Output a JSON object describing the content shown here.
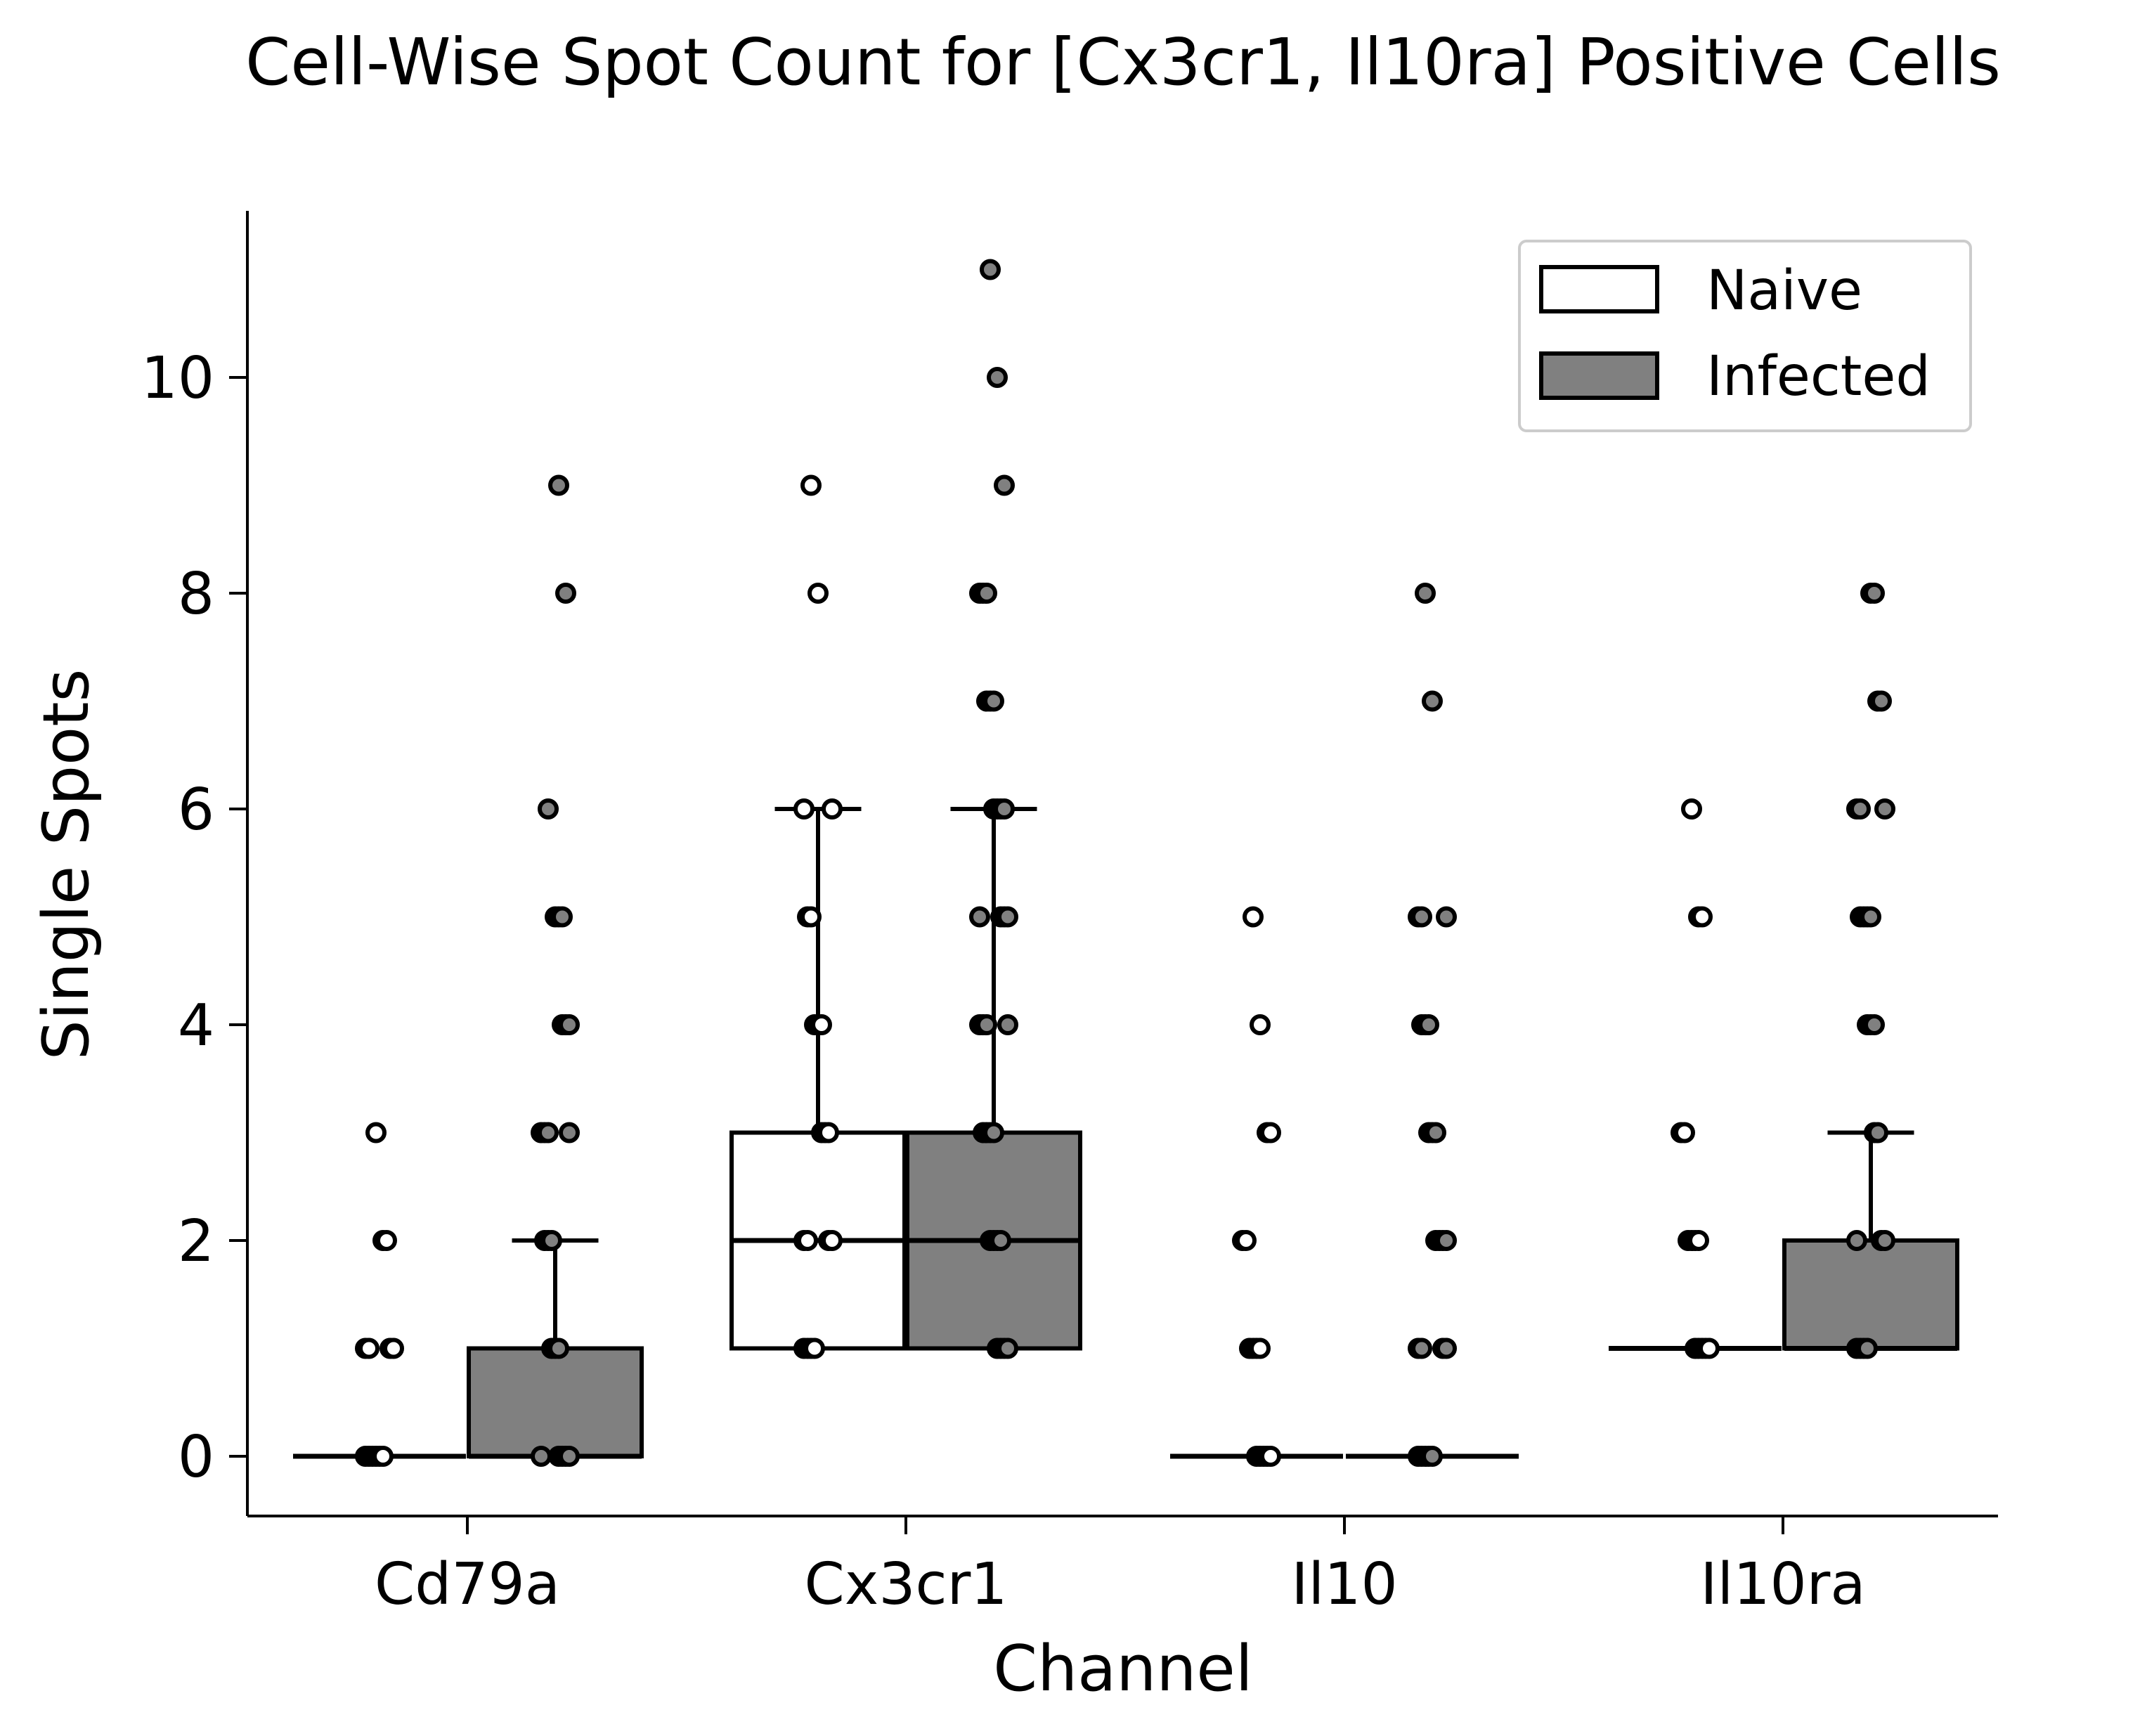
{
  "chart_data": {
    "type": "box",
    "title": "Cell-Wise Spot Count for [Cx3cr1, Il10ra] Positive Cells",
    "xlabel": "Channel",
    "ylabel": "Single Spots",
    "categories": [
      "Cd79a",
      "Cx3cr1",
      "Il10",
      "Il10ra"
    ],
    "ylim": [
      -0.55,
      11.55
    ],
    "yticks": [
      0,
      2,
      4,
      6,
      8,
      10
    ],
    "legend": {
      "placement": "top-right",
      "entries": [
        {
          "label": "Naive",
          "color": "#ffffff"
        },
        {
          "label": "Infected",
          "color": "#808080"
        }
      ]
    },
    "series": [
      {
        "name": "Naive",
        "color": "#ffffff",
        "boxes": [
          {
            "category": "Cd79a",
            "whisker_low": 0,
            "q1": 0,
            "median": 0,
            "q3": 0,
            "whisker_high": 0
          },
          {
            "category": "Cx3cr1",
            "whisker_low": 1,
            "q1": 1,
            "median": 2,
            "q3": 3,
            "whisker_high": 6
          },
          {
            "category": "Il10",
            "whisker_low": 0,
            "q1": 0,
            "median": 0,
            "q3": 0,
            "whisker_high": 0
          },
          {
            "category": "Il10ra",
            "whisker_low": 1,
            "q1": 1,
            "median": 1,
            "q3": 1,
            "whisker_high": 1
          }
        ],
        "points": [
          {
            "category": "Cd79a",
            "values": [
              0,
              0,
              0,
              0,
              0,
              0,
              1,
              1,
              1,
              1,
              2,
              2,
              3
            ]
          },
          {
            "category": "Cx3cr1",
            "values": [
              1,
              1,
              1,
              1,
              2,
              2,
              2,
              2,
              3,
              3,
              3,
              4,
              4,
              4,
              5,
              5,
              6,
              6,
              8,
              9
            ]
          },
          {
            "category": "Il10",
            "values": [
              0,
              0,
              0,
              0,
              0,
              1,
              1,
              1,
              1,
              2,
              2,
              3,
              3,
              4,
              5
            ]
          },
          {
            "category": "Il10ra",
            "values": [
              1,
              1,
              1,
              1,
              1,
              2,
              2,
              2,
              2,
              3,
              3,
              5,
              5,
              6
            ]
          }
        ]
      },
      {
        "name": "Infected",
        "color": "#808080",
        "boxes": [
          {
            "category": "Cd79a",
            "whisker_low": 0,
            "q1": 0,
            "median": 0,
            "q3": 1,
            "whisker_high": 2
          },
          {
            "category": "Cx3cr1",
            "whisker_low": 1,
            "q1": 1,
            "median": 2,
            "q3": 3,
            "whisker_high": 6
          },
          {
            "category": "Il10",
            "whisker_low": 0,
            "q1": 0,
            "median": 0,
            "q3": 0,
            "whisker_high": 0
          },
          {
            "category": "Il10ra",
            "whisker_low": 1,
            "q1": 1,
            "median": 1,
            "q3": 2,
            "whisker_high": 3
          }
        ],
        "points": [
          {
            "category": "Cd79a",
            "values": [
              0,
              0,
              0,
              0,
              0,
              1,
              1,
              1,
              2,
              2,
              2,
              3,
              3,
              3,
              3,
              4,
              4,
              4,
              5,
              5,
              5,
              6,
              8,
              9
            ]
          },
          {
            "category": "Cx3cr1",
            "values": [
              1,
              1,
              1,
              1,
              2,
              2,
              2,
              2,
              3,
              3,
              3,
              3,
              4,
              4,
              4,
              4,
              5,
              5,
              5,
              5,
              6,
              6,
              6,
              6,
              7,
              7,
              7,
              8,
              8,
              8,
              9,
              10,
              11
            ]
          },
          {
            "category": "Il10",
            "values": [
              0,
              0,
              0,
              0,
              0,
              1,
              1,
              1,
              1,
              2,
              2,
              2,
              2,
              3,
              3,
              3,
              4,
              4,
              4,
              5,
              5,
              5,
              7,
              8
            ]
          },
          {
            "category": "Il10ra",
            "values": [
              1,
              1,
              1,
              1,
              2,
              2,
              2,
              3,
              3,
              4,
              4,
              4,
              5,
              5,
              5,
              5,
              6,
              6,
              6,
              7,
              7,
              8,
              8
            ]
          }
        ]
      }
    ]
  }
}
